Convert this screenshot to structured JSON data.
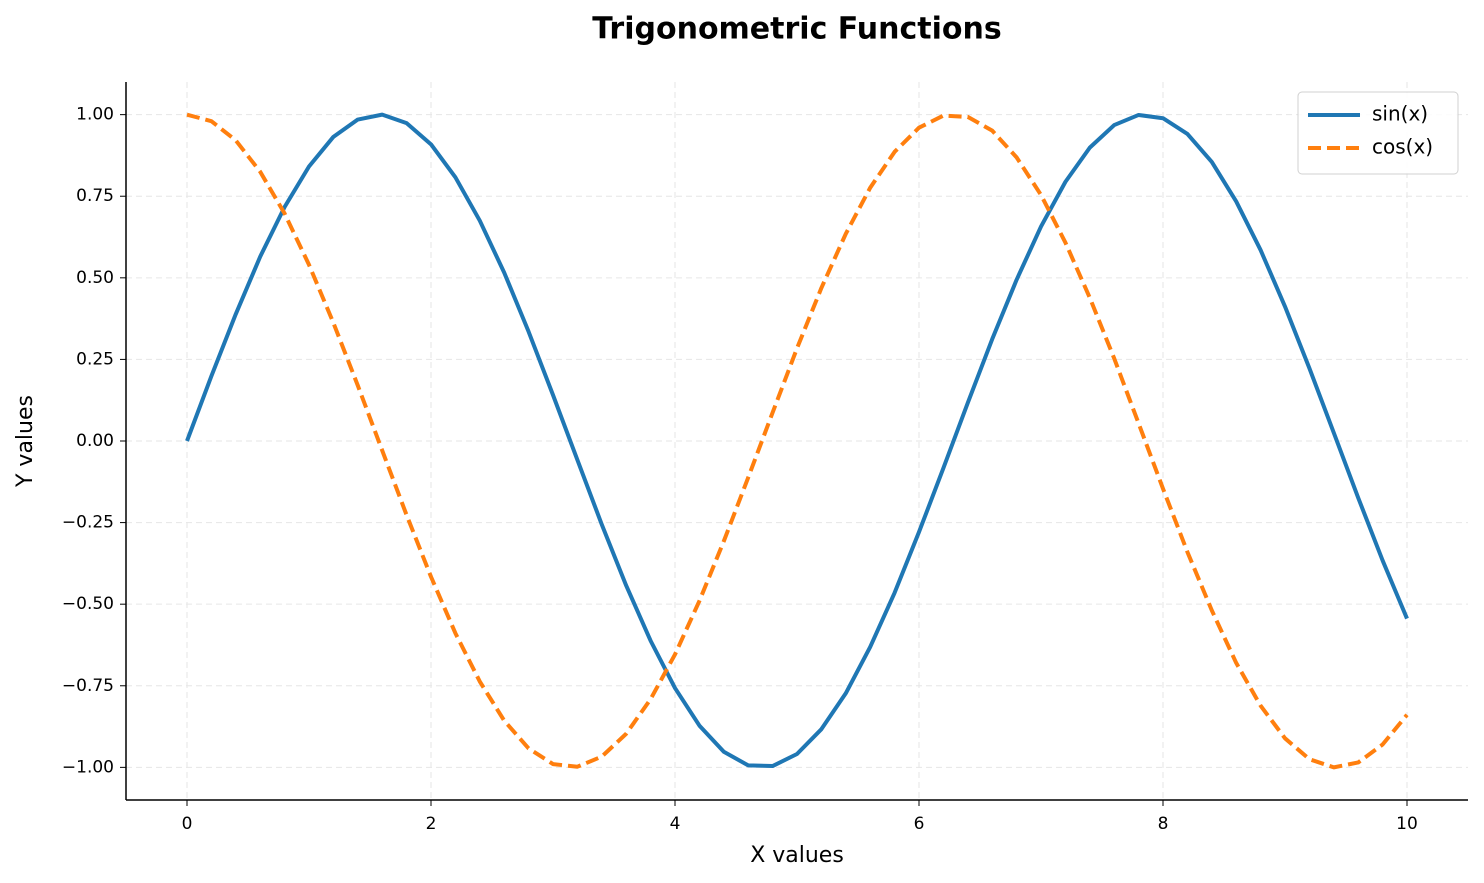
{
  "chart_data": {
    "type": "line",
    "title": "Trigonometric Functions",
    "x_label": "X values",
    "y_label": "Y values",
    "x": [
      0,
      0.2,
      0.4,
      0.6,
      0.8,
      1,
      1.2,
      1.4,
      1.6,
      1.8,
      2,
      2.2,
      2.4,
      2.6,
      2.8,
      3,
      3.2,
      3.4,
      3.6,
      3.8,
      4,
      4.2,
      4.4,
      4.6,
      4.8,
      5,
      5.2,
      5.4,
      5.6,
      5.8,
      6,
      6.2,
      6.4,
      6.6,
      6.8,
      7,
      7.2,
      7.4,
      7.6,
      7.8,
      8,
      8.2,
      8.4,
      8.6,
      8.8,
      9,
      9.2,
      9.4,
      9.6,
      9.8,
      10
    ],
    "series": [
      {
        "name": "sin(x)",
        "color": "#1f77b4",
        "linestyle": "solid",
        "values": [
          0,
          0.199,
          0.389,
          0.565,
          0.717,
          0.841,
          0.932,
          0.985,
          1.0,
          0.974,
          0.909,
          0.808,
          0.675,
          0.516,
          0.335,
          0.141,
          -0.058,
          -0.256,
          -0.443,
          -0.612,
          -0.757,
          -0.872,
          -0.952,
          -0.994,
          -0.996,
          -0.959,
          -0.883,
          -0.773,
          -0.631,
          -0.465,
          -0.279,
          -0.083,
          0.117,
          0.312,
          0.494,
          0.657,
          0.794,
          0.899,
          0.968,
          0.999,
          0.989,
          0.941,
          0.855,
          0.734,
          0.585,
          0.412,
          0.223,
          0.025,
          -0.174,
          -0.366,
          -0.544
        ]
      },
      {
        "name": "cos(x)",
        "color": "#ff7f0e",
        "linestyle": "dashed",
        "values": [
          1,
          0.98,
          0.921,
          0.825,
          0.697,
          0.54,
          0.362,
          0.17,
          -0.029,
          -0.227,
          -0.416,
          -0.589,
          -0.737,
          -0.857,
          -0.942,
          -0.99,
          -0.998,
          -0.967,
          -0.897,
          -0.791,
          -0.654,
          -0.49,
          -0.307,
          -0.112,
          0.087,
          0.284,
          0.469,
          0.635,
          0.776,
          0.886,
          0.96,
          0.997,
          0.993,
          0.951,
          0.869,
          0.754,
          0.608,
          0.439,
          0.253,
          0.054,
          -0.146,
          -0.34,
          -0.519,
          -0.68,
          -0.811,
          -0.911,
          -0.975,
          -1.0,
          -0.985,
          -0.93,
          -0.839
        ]
      }
    ],
    "xlim": [
      -0.5,
      10.5
    ],
    "xticks": [
      0,
      2,
      4,
      6,
      8,
      10
    ],
    "ylim": [
      -1.1,
      1.1
    ],
    "yticks": [
      {
        "value": -1,
        "label": "−1.00"
      },
      {
        "value": -0.75,
        "label": "−0.75"
      },
      {
        "value": -0.5,
        "label": "−0.50"
      },
      {
        "value": -0.25,
        "label": "−0.25"
      },
      {
        "value": 0,
        "label": "0.00"
      },
      {
        "value": 0.25,
        "label": "0.25"
      },
      {
        "value": 0.5,
        "label": "0.50"
      },
      {
        "value": 0.75,
        "label": "0.75"
      },
      {
        "value": 1,
        "label": "1.00"
      }
    ],
    "grid": true,
    "legend": "upper right"
  }
}
